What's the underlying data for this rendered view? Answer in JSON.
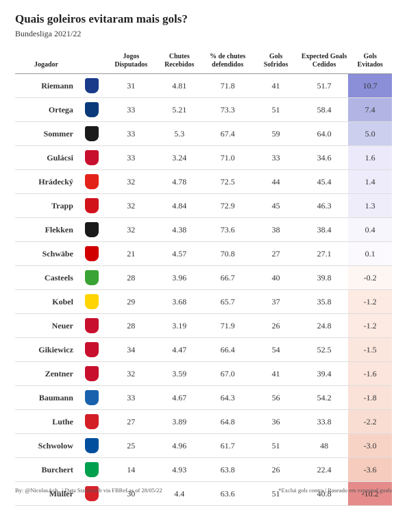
{
  "title": "Quais goleiros evitaram mais gols?",
  "subtitle": "Bundesliga 2021/22",
  "columns": [
    {
      "key": "player",
      "label": "Jogador"
    },
    {
      "key": "crest",
      "label": ""
    },
    {
      "key": "games",
      "label": "Jogos\nDisputados"
    },
    {
      "key": "shots",
      "label": "Chutes\nRecebidos"
    },
    {
      "key": "savepct",
      "label": "% de chutes\ndefendidos"
    },
    {
      "key": "goals",
      "label": "Gols\nSofridos"
    },
    {
      "key": "xg",
      "label": "Expected Goals\nCedidos"
    },
    {
      "key": "avoided",
      "label": "Gols\nEvitados"
    }
  ],
  "rows": [
    {
      "player": "Riemann",
      "crest": "#1a3a8a",
      "games": "31",
      "shots": "4.81",
      "savepct": "71.8",
      "goals": "41",
      "xg": "51.7",
      "avoided": "10.7",
      "shade": "#8a8fd8"
    },
    {
      "player": "Ortega",
      "crest": "#0a3a7a",
      "games": "33",
      "shots": "5.21",
      "savepct": "73.3",
      "goals": "51",
      "xg": "58.4",
      "avoided": "7.4",
      "shade": "#b2b5e4"
    },
    {
      "player": "Sommer",
      "crest": "#1a1a1a",
      "games": "33",
      "shots": "5.3",
      "savepct": "67.4",
      "goals": "59",
      "xg": "64.0",
      "avoided": "5.0",
      "shade": "#cdcfee"
    },
    {
      "player": "Gulácsi",
      "crest": "#c8102e",
      "games": "33",
      "shots": "3.24",
      "savepct": "71.0",
      "goals": "33",
      "xg": "34.6",
      "avoided": "1.6",
      "shade": "#eceafa"
    },
    {
      "player": "Hrádecký",
      "crest": "#e32219",
      "games": "32",
      "shots": "4.78",
      "savepct": "72.5",
      "goals": "44",
      "xg": "45.4",
      "avoided": "1.4",
      "shade": "#eeecfa"
    },
    {
      "player": "Trapp",
      "crest": "#d1121b",
      "games": "32",
      "shots": "4.84",
      "savepct": "72.9",
      "goals": "45",
      "xg": "46.3",
      "avoided": "1.3",
      "shade": "#efedfa"
    },
    {
      "player": "Flekken",
      "crest": "#1a1a1a",
      "games": "32",
      "shots": "4.38",
      "savepct": "73.6",
      "goals": "38",
      "xg": "38.4",
      "avoided": "0.4",
      "shade": "#f8f6fd"
    },
    {
      "player": "Schwäbe",
      "crest": "#d10000",
      "games": "21",
      "shots": "4.57",
      "savepct": "70.8",
      "goals": "27",
      "xg": "27.1",
      "avoided": "0.1",
      "shade": "#fbf9fe"
    },
    {
      "player": "Casteels",
      "crest": "#3aa335",
      "games": "28",
      "shots": "3.96",
      "savepct": "66.7",
      "goals": "40",
      "xg": "39.8",
      "avoided": "-0.2",
      "shade": "#fef6f3"
    },
    {
      "player": "Kobel",
      "crest": "#ffd400",
      "games": "29",
      "shots": "3.68",
      "savepct": "65.7",
      "goals": "37",
      "xg": "35.8",
      "avoided": "-1.2",
      "shade": "#fceae3"
    },
    {
      "player": "Neuer",
      "crest": "#c8102e",
      "games": "28",
      "shots": "3.19",
      "savepct": "71.9",
      "goals": "26",
      "xg": "24.8",
      "avoided": "-1.2",
      "shade": "#fceae3"
    },
    {
      "player": "Gikiewicz",
      "crest": "#c8102e",
      "games": "34",
      "shots": "4.47",
      "savepct": "66.4",
      "goals": "54",
      "xg": "52.5",
      "avoided": "-1.5",
      "shade": "#fbe6de"
    },
    {
      "player": "Zentner",
      "crest": "#c8102e",
      "games": "32",
      "shots": "3.59",
      "savepct": "67.0",
      "goals": "41",
      "xg": "39.4",
      "avoided": "-1.6",
      "shade": "#fbe5dc"
    },
    {
      "player": "Baumann",
      "crest": "#1961ac",
      "games": "33",
      "shots": "4.67",
      "savepct": "64.3",
      "goals": "56",
      "xg": "54.2",
      "avoided": "-1.8",
      "shade": "#fae2d9"
    },
    {
      "player": "Luthe",
      "crest": "#d41e26",
      "games": "27",
      "shots": "3.89",
      "savepct": "64.8",
      "goals": "36",
      "xg": "33.8",
      "avoided": "-2.2",
      "shade": "#f9ddd2"
    },
    {
      "player": "Schwolow",
      "crest": "#004f9e",
      "games": "25",
      "shots": "4.96",
      "savepct": "61.7",
      "goals": "51",
      "xg": "48",
      "avoided": "-3.0",
      "shade": "#f7d3c6"
    },
    {
      "player": "Burchert",
      "crest": "#00a04f",
      "games": "14",
      "shots": "4.93",
      "savepct": "63.8",
      "goals": "26",
      "xg": "22.4",
      "avoided": "-3.6",
      "shade": "#f5ccbd"
    },
    {
      "player": "Müller",
      "crest": "#d8222a",
      "games": "30",
      "shots": "4.4",
      "savepct": "63.6",
      "goals": "51",
      "xg": "40.8",
      "avoided": "-10.2",
      "shade": "#e58b8b"
    }
  ],
  "footer_left": "By: @NicolasAch_ | Data Statsbomb via FBRef as of 28/05/22",
  "footer_right": "*Exclui gols contra | Baseado em expected goals"
}
